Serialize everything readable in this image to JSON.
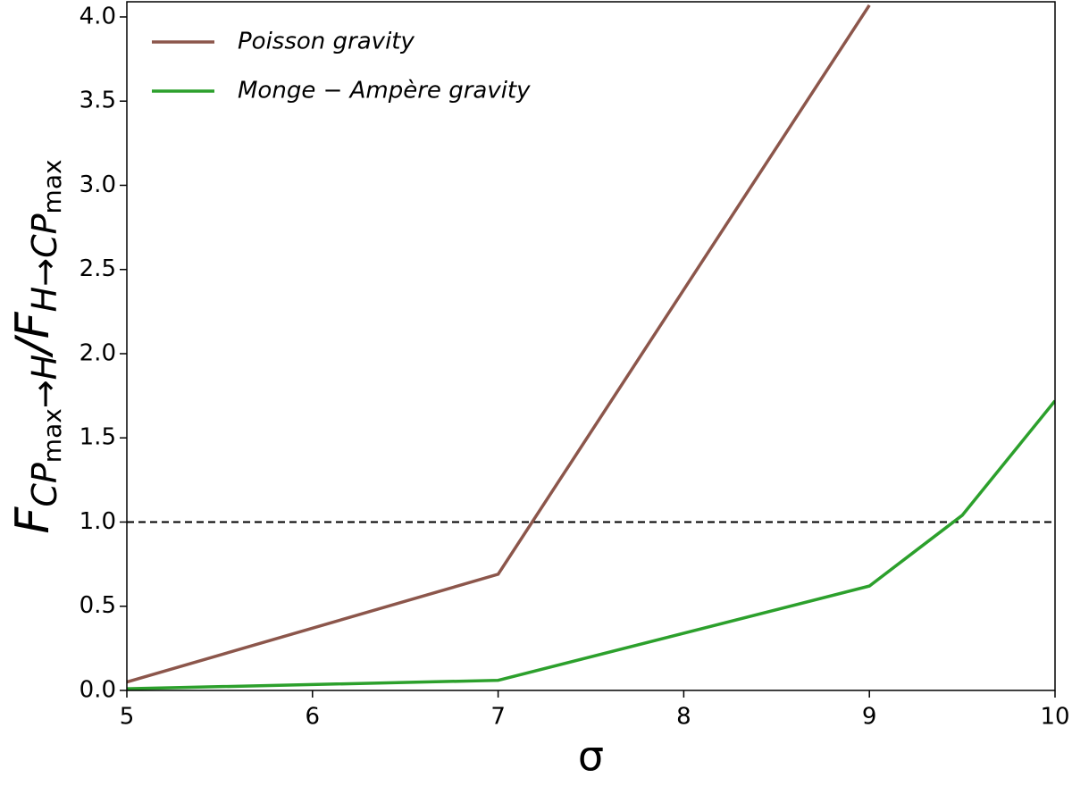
{
  "chart_data": {
    "type": "line",
    "x_label": "σ",
    "y_label": [
      "F",
      "CP",
      "max",
      "→H",
      "/F",
      "H→CP",
      "max"
    ],
    "x": [
      5,
      7,
      9,
      9.5,
      10
    ],
    "series": [
      {
        "name": "Poisson gravity",
        "color": "#8c564b",
        "values": [
          0.05,
          0.69,
          4.07,
          null,
          null
        ]
      },
      {
        "name": "Monge − Ampère gravity",
        "color": "#2ca02c",
        "values": [
          0.01,
          0.06,
          0.62,
          1.04,
          1.72
        ]
      }
    ],
    "hline": 1.0,
    "xlim": [
      5,
      10
    ],
    "xticks": [
      5,
      6,
      7,
      8,
      9,
      10
    ],
    "ylim": [
      0,
      4.09
    ],
    "yticks": [
      {
        "value": 0,
        "label": "0.0"
      },
      {
        "value": 0.5,
        "label": "0.5"
      },
      {
        "value": 1,
        "label": "1.0"
      },
      {
        "value": 1.5,
        "label": "1.5"
      },
      {
        "value": 2,
        "label": "2.0"
      },
      {
        "value": 2.5,
        "label": "2.5"
      },
      {
        "value": 3,
        "label": "3.0"
      },
      {
        "value": 3.5,
        "label": "3.5"
      },
      {
        "value": 4,
        "label": "4.0"
      }
    ],
    "legend": "upper left"
  }
}
